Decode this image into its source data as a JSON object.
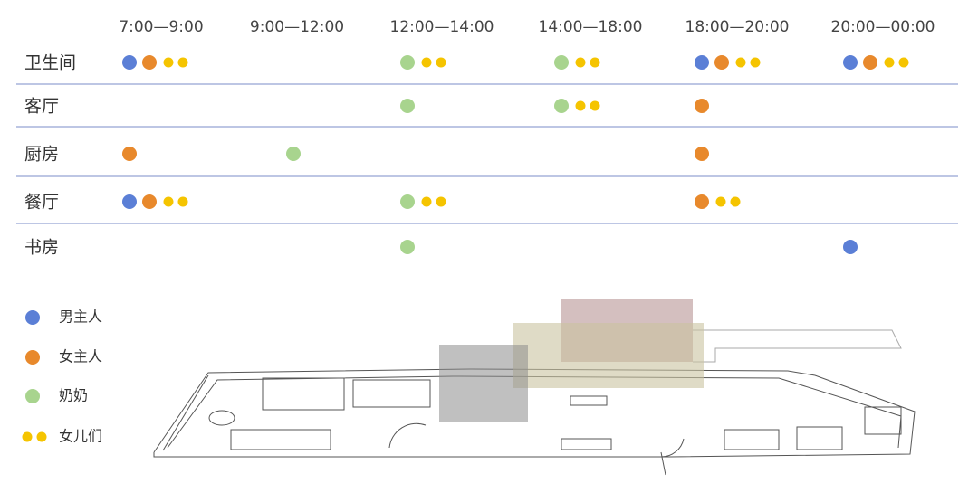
{
  "columns": [
    "7:00—9:00",
    "9:00—12:00",
    "12:00—14:00",
    "14:00—18:00",
    "18:00—20:00",
    "20:00—00:00"
  ],
  "legend": [
    {
      "label": "男主人",
      "color": "#5b7fd6"
    },
    {
      "label": "女主人",
      "color": "#e8892c"
    },
    {
      "label": "奶奶",
      "color": "#a8d48e"
    },
    {
      "label": "女儿们",
      "color": "#f5c400"
    }
  ],
  "rows": [
    {
      "room": "卫生间",
      "cells": [
        [
          0,
          1,
          3
        ],
        [],
        [
          2,
          3
        ],
        [
          2,
          3
        ],
        [
          0,
          1,
          3
        ],
        [
          0,
          1,
          3
        ]
      ]
    },
    {
      "room": "客厅",
      "cells": [
        [],
        [],
        [
          2
        ],
        [
          2,
          3
        ],
        [
          1
        ],
        []
      ]
    },
    {
      "room": "厨房",
      "cells": [
        [
          1
        ],
        [
          2
        ],
        [],
        [],
        [
          1
        ],
        []
      ]
    },
    {
      "room": "餐厅",
      "cells": [
        [
          0,
          1,
          3
        ],
        [],
        [
          2,
          3
        ],
        [],
        [
          1,
          3
        ],
        []
      ]
    },
    {
      "room": "书房",
      "cells": [
        [],
        [],
        [
          2
        ],
        [],
        [],
        [
          0
        ]
      ]
    }
  ]
}
